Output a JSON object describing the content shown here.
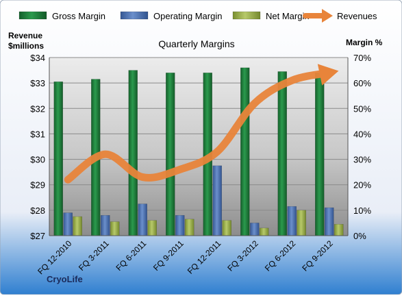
{
  "chart_data": {
    "type": "bar",
    "title": "Quarterly Margins",
    "left_axis_label_line1": "Revenue",
    "left_axis_label_line2": "$millions",
    "right_axis_label": "Margin %",
    "source_label": "CryoLife",
    "categories": [
      "FQ 12-2010",
      "FQ 3-2011",
      "FQ 6-2011",
      "FQ 9-2011",
      "FQ 12-2011",
      "FQ 3-2012",
      "FQ 6-2012",
      "FQ 9-2012"
    ],
    "left_axis": {
      "min": 27,
      "max": 34,
      "step": 1,
      "ticks": [
        "$27",
        "$28",
        "$29",
        "$30",
        "$31",
        "$32",
        "$33",
        "$34"
      ]
    },
    "right_axis": {
      "min": 0,
      "max": 70,
      "step": 10,
      "ticks": [
        "0%",
        "10%",
        "20%",
        "30%",
        "40%",
        "50%",
        "60%",
        "70%"
      ]
    },
    "series": [
      {
        "name": "Gross Margin",
        "axis": "right",
        "kind": "bar",
        "color": "#1f7a3a",
        "values": [
          60.5,
          61.5,
          65.0,
          64.0,
          64.0,
          66.0,
          64.5,
          64.0
        ]
      },
      {
        "name": "Operating Margin",
        "axis": "right",
        "kind": "bar",
        "color": "#4a6fb0",
        "values": [
          9.0,
          8.0,
          12.5,
          8.0,
          27.5,
          5.0,
          11.5,
          11.0
        ]
      },
      {
        "name": "Net Margin",
        "axis": "right",
        "kind": "bar",
        "color": "#9bb04a",
        "values": [
          7.5,
          5.5,
          6.0,
          6.5,
          6.0,
          3.0,
          10.0,
          4.5
        ]
      },
      {
        "name": "Revenues",
        "axis": "left",
        "kind": "line",
        "color": "#e8843a",
        "values": [
          29.2,
          30.2,
          29.3,
          29.6,
          30.3,
          32.2,
          33.1,
          33.4
        ]
      }
    ],
    "grid": true,
    "legend_position": "top"
  }
}
